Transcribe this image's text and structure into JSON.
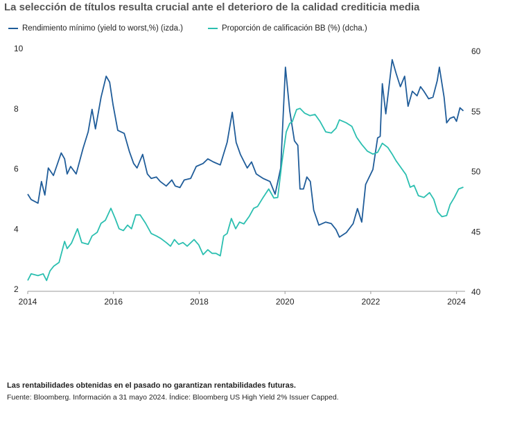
{
  "chart_data": {
    "type": "line",
    "title": "La selección de títulos resulta crucial ante el deterioro de la calidad crediticia media",
    "notes": [
      "Las rentabilidades obtenidas en el pasado no garantizan rentabilidades futuras.",
      "Fuente: Bloomberg. Información a 31 mayo 2024. Índice: Bloomberg US High Yield 2% Issuer Capped."
    ],
    "xlim": [
      2014,
      2024.2
    ],
    "xticks": [
      2014,
      2016,
      2018,
      2020,
      2022,
      2024
    ],
    "ylim": [
      2,
      10
    ],
    "yticks": [
      2,
      4,
      6,
      8,
      10
    ],
    "y2lim": [
      40,
      60
    ],
    "y2ticks": [
      40,
      45,
      50,
      55,
      60
    ],
    "grid": false,
    "series": [
      {
        "name": "Rendimiento mínimo (yield to worst,%) (izda.)",
        "color": "#1f5c99",
        "axis": "y",
        "x": [
          2014.0,
          2014.08,
          2014.24,
          2014.32,
          2014.4,
          2014.48,
          2014.6,
          2014.78,
          2014.86,
          2014.92,
          2015.0,
          2015.13,
          2015.29,
          2015.41,
          2015.5,
          2015.58,
          2015.71,
          2015.83,
          2015.91,
          2015.99,
          2016.1,
          2016.25,
          2016.37,
          2016.47,
          2016.55,
          2016.68,
          2016.79,
          2016.88,
          2017.0,
          2017.09,
          2017.23,
          2017.36,
          2017.44,
          2017.55,
          2017.65,
          2017.8,
          2017.93,
          2018.09,
          2018.2,
          2018.33,
          2018.49,
          2018.65,
          2018.77,
          2018.86,
          2018.96,
          2019.12,
          2019.22,
          2019.33,
          2019.49,
          2019.65,
          2019.77,
          2019.9,
          2020.01,
          2020.11,
          2020.22,
          2020.3,
          2020.35,
          2020.43,
          2020.51,
          2020.59,
          2020.67,
          2020.79,
          2020.95,
          2021.08,
          2021.19,
          2021.27,
          2021.43,
          2021.59,
          2021.69,
          2021.79,
          2021.88,
          2022.05,
          2022.16,
          2022.22,
          2022.27,
          2022.35,
          2022.5,
          2022.59,
          2022.69,
          2022.79,
          2022.87,
          2022.97,
          2023.08,
          2023.16,
          2023.24,
          2023.35,
          2023.45,
          2023.55,
          2023.6,
          2023.71,
          2023.77,
          2023.85,
          2023.94,
          2024.0,
          2024.08,
          2024.16
        ],
        "values": [
          5.23,
          5.05,
          4.93,
          5.65,
          5.2,
          6.1,
          5.85,
          6.6,
          6.4,
          5.9,
          6.15,
          5.9,
          6.75,
          7.3,
          8.05,
          7.4,
          8.45,
          9.15,
          8.95,
          8.2,
          7.35,
          7.25,
          6.65,
          6.25,
          6.1,
          6.55,
          5.9,
          5.75,
          5.8,
          5.65,
          5.5,
          5.7,
          5.5,
          5.45,
          5.7,
          5.75,
          6.15,
          6.25,
          6.4,
          6.3,
          6.2,
          6.95,
          7.95,
          6.95,
          6.55,
          6.1,
          6.3,
          5.9,
          5.75,
          5.65,
          5.23,
          6.1,
          9.45,
          8.0,
          7.0,
          6.85,
          5.4,
          5.4,
          5.8,
          5.65,
          4.7,
          4.2,
          4.3,
          4.25,
          4.05,
          3.8,
          3.95,
          4.25,
          4.75,
          4.3,
          5.55,
          6.05,
          7.1,
          7.15,
          8.9,
          7.9,
          9.7,
          9.25,
          8.8,
          9.15,
          8.15,
          8.65,
          8.5,
          8.8,
          8.65,
          8.4,
          8.45,
          9.0,
          9.45,
          8.45,
          7.6,
          7.75,
          7.8,
          7.65,
          8.1,
          8.0
        ]
      },
      {
        "name": "Proporción de calificación BB (%) (dcha.)",
        "color": "#2bbfb0",
        "axis": "y2",
        "x": [
          2014.0,
          2014.08,
          2014.24,
          2014.36,
          2014.44,
          2014.52,
          2014.61,
          2014.73,
          2014.86,
          2014.92,
          2015.02,
          2015.16,
          2015.26,
          2015.41,
          2015.5,
          2015.62,
          2015.71,
          2015.81,
          2015.94,
          2016.04,
          2016.13,
          2016.23,
          2016.33,
          2016.42,
          2016.52,
          2016.62,
          2016.75,
          2016.88,
          2017.0,
          2017.1,
          2017.23,
          2017.33,
          2017.42,
          2017.52,
          2017.62,
          2017.72,
          2017.88,
          2017.99,
          2018.09,
          2018.2,
          2018.3,
          2018.39,
          2018.49,
          2018.57,
          2018.65,
          2018.75,
          2018.85,
          2018.94,
          2019.04,
          2019.17,
          2019.27,
          2019.36,
          2019.49,
          2019.62,
          2019.74,
          2019.83,
          2019.93,
          2020.03,
          2020.11,
          2020.17,
          2020.27,
          2020.35,
          2020.46,
          2020.58,
          2020.7,
          2020.82,
          2020.95,
          2021.08,
          2021.19,
          2021.27,
          2021.43,
          2021.56,
          2021.67,
          2021.79,
          2021.92,
          2022.05,
          2022.16,
          2022.27,
          2022.4,
          2022.5,
          2022.59,
          2022.72,
          2022.82,
          2022.92,
          2023.01,
          2023.11,
          2023.24,
          2023.37,
          2023.47,
          2023.56,
          2023.66,
          2023.77,
          2023.85,
          2023.95,
          2024.05,
          2024.16
        ],
        "values": [
          40.9,
          41.45,
          41.3,
          41.45,
          40.9,
          41.7,
          42.1,
          42.4,
          44.15,
          43.55,
          44.0,
          45.2,
          44.05,
          43.9,
          44.6,
          44.9,
          45.65,
          45.9,
          46.9,
          46.05,
          45.2,
          45.05,
          45.5,
          45.2,
          46.35,
          46.35,
          45.65,
          44.8,
          44.6,
          44.4,
          44.05,
          43.75,
          44.3,
          43.9,
          44.05,
          43.75,
          44.3,
          43.85,
          43.05,
          43.45,
          43.15,
          43.15,
          42.95,
          44.6,
          44.8,
          46.05,
          45.2,
          45.75,
          45.6,
          46.25,
          46.9,
          47.05,
          47.8,
          48.5,
          47.75,
          47.8,
          50.75,
          53.25,
          53.95,
          54.1,
          55.1,
          55.2,
          54.8,
          54.6,
          54.7,
          54.1,
          53.25,
          53.15,
          53.55,
          54.25,
          54.0,
          53.7,
          52.8,
          52.2,
          51.65,
          51.4,
          51.55,
          52.3,
          51.95,
          51.4,
          50.85,
          50.2,
          49.7,
          48.65,
          48.8,
          47.95,
          47.8,
          48.2,
          47.65,
          46.6,
          46.2,
          46.3,
          47.2,
          47.8,
          48.5,
          48.65
        ]
      }
    ]
  }
}
